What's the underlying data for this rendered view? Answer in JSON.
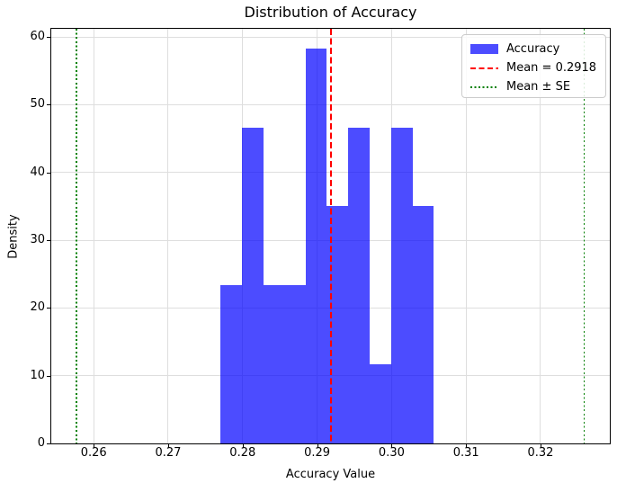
{
  "figure": {
    "title": "Distribution of Accuracy",
    "xlabel": "Accuracy Value",
    "ylabel": "Density"
  },
  "legend": {
    "position": "upper-right",
    "items": [
      {
        "label": "Accuracy",
        "swatch": "blue-patch"
      },
      {
        "label": "Mean = 0.2918",
        "swatch": "red-dashed-line"
      },
      {
        "label": "Mean ± SE",
        "swatch": "green-dotted-line"
      }
    ]
  },
  "chart_data": {
    "type": "bar",
    "subtype": "histogram",
    "title": "Distribution of Accuracy",
    "xlabel": "Accuracy Value",
    "ylabel": "Density",
    "series_name": "Accuracy",
    "bin_edges": [
      0.277,
      0.2799,
      0.2828,
      0.2856,
      0.2885,
      0.2913,
      0.2942,
      0.2971,
      0.2999,
      0.3028,
      0.3056
    ],
    "densities": [
      23.3,
      46.6,
      23.3,
      23.3,
      58.3,
      35.0,
      46.6,
      11.7,
      46.6,
      35.0
    ],
    "bar_color": "#0000ff",
    "bar_alpha": 0.7,
    "mean_line": {
      "value": 0.2918,
      "color": "#ff0000",
      "style": "dashed",
      "label": "Mean = 0.2918"
    },
    "se_lines": {
      "values": [
        0.2577,
        0.3259
      ],
      "color": "#008000",
      "style": "dotted",
      "label": "Mean ± SE"
    },
    "x_ticks": [
      0.26,
      0.27,
      0.28,
      0.29,
      0.3,
      0.31,
      0.32
    ],
    "y_ticks": [
      0,
      10,
      20,
      30,
      40,
      50,
      60
    ],
    "xlim": [
      0.2543,
      0.3293
    ],
    "ylim": [
      0,
      61.2
    ],
    "grid": true,
    "legend_position": "upper right"
  }
}
